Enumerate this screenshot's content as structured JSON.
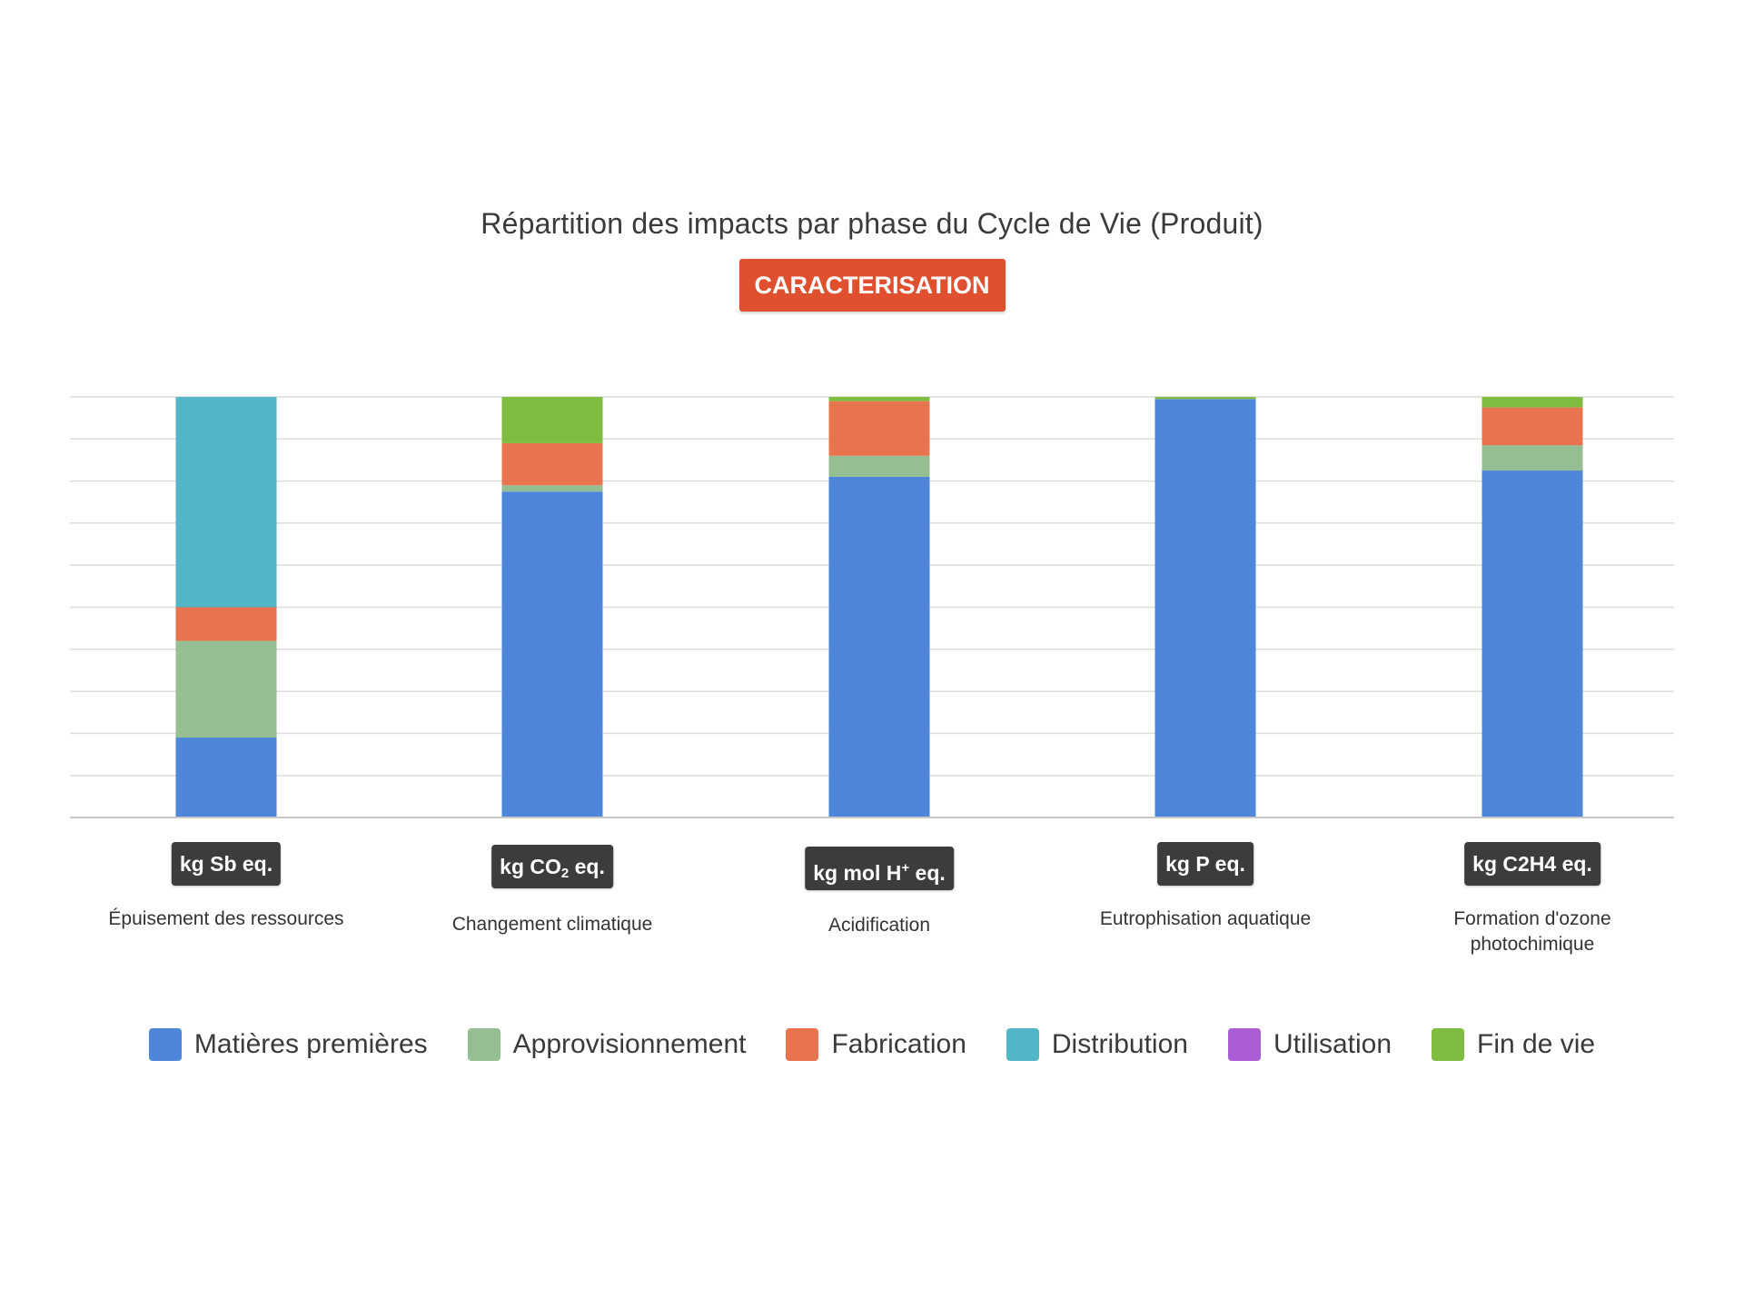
{
  "chart_data": {
    "type": "bar",
    "stacked": true,
    "normalized_percent": true,
    "title": "Répartition des impacts par phase du Cycle de Vie (Produit)",
    "subtitle_badge": "CARACTERISATION",
    "xlabel": "",
    "ylabel": "",
    "ylim": [
      0,
      100
    ],
    "grid": true,
    "legend_position": "bottom",
    "categories": [
      "Épuisement des ressources",
      "Changement climatique",
      "Acidification",
      "Eutrophisation aquatique",
      "Formation d'ozone photochimique"
    ],
    "category_label_lines": [
      [
        "Épuisement des ressources"
      ],
      [
        "Changement climatique"
      ],
      [
        "Acidification"
      ],
      [
        "Eutrophisation aquatique"
      ],
      [
        "Formation d'ozone",
        "photochimique"
      ]
    ],
    "units": [
      {
        "pre": "kg Sb eq.",
        "sub": "",
        "sup": "",
        "post": ""
      },
      {
        "pre": "kg CO",
        "sub": "2",
        "sup": "",
        "post": " eq."
      },
      {
        "pre": "kg mol H",
        "sub": "",
        "sup": "+",
        "post": " eq."
      },
      {
        "pre": "kg P eq.",
        "sub": "",
        "sup": "",
        "post": ""
      },
      {
        "pre": "kg C2H4 eq.",
        "sub": "",
        "sup": "",
        "post": ""
      }
    ],
    "series": [
      {
        "name": "Matières premières",
        "color": "#4e87d9",
        "values": [
          19,
          77.5,
          81,
          99.5,
          82.5
        ]
      },
      {
        "name": "Approvisionnement",
        "color": "#95be93",
        "values": [
          23,
          1.5,
          5,
          0,
          6
        ]
      },
      {
        "name": "Fabrication",
        "color": "#e8744f",
        "values": [
          8,
          10,
          13,
          0,
          9
        ]
      },
      {
        "name": "Distribution",
        "color": "#53b6c6",
        "values": [
          50,
          0,
          0,
          0,
          0
        ]
      },
      {
        "name": "Utilisation",
        "color": "#a95cd4",
        "values": [
          0,
          0,
          0,
          0,
          0
        ]
      },
      {
        "name": "Fin de vie",
        "color": "#7ebd3f",
        "values": [
          0,
          11,
          1,
          0.5,
          2.5
        ]
      }
    ]
  }
}
